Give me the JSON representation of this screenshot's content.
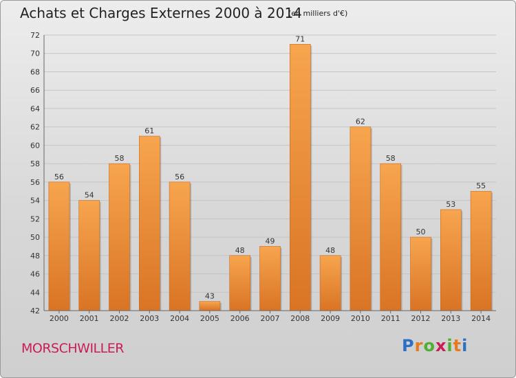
{
  "header": {
    "title": "Achats et Charges Externes 2000 à 2014",
    "subtitle": "(en milliers d'€)"
  },
  "footer": {
    "commune": "MORSCHWILLER",
    "logo_text": "Proxiti"
  },
  "colors": {
    "bar_top": "#f7a54e",
    "bar_bottom": "#d97424",
    "grid": "#c4c4c4",
    "commune": "#c81e55"
  },
  "chart_data": {
    "type": "bar",
    "title": "Achats et Charges Externes 2000 à 2014",
    "subtitle": "(en milliers d'€)",
    "categories": [
      "2000",
      "2001",
      "2002",
      "2003",
      "2004",
      "2005",
      "2006",
      "2007",
      "2008",
      "2009",
      "2010",
      "2011",
      "2012",
      "2013",
      "2014"
    ],
    "values": [
      56,
      54,
      58,
      61,
      56,
      43,
      48,
      49,
      71,
      48,
      62,
      58,
      50,
      53,
      55
    ],
    "ylim": [
      42,
      72
    ],
    "yticks": [
      42,
      44,
      46,
      48,
      50,
      52,
      54,
      56,
      58,
      60,
      62,
      64,
      66,
      68,
      70,
      72
    ],
    "grid": true,
    "xlabel": "",
    "ylabel": ""
  }
}
